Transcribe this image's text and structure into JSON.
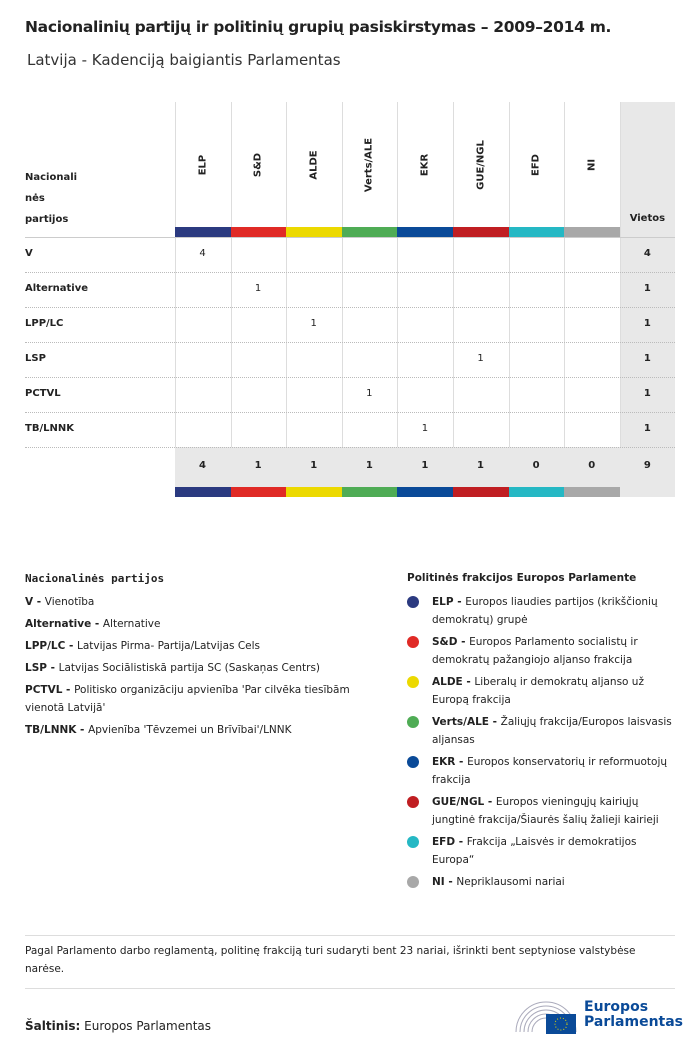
{
  "header": {
    "title": "Nacionalinių partijų ir politinių grupių pasiskirstymas – 2009–2014 m.",
    "subtitle": "Latvija - Kadenciją baigiantis Parlamentas"
  },
  "chart_data": {
    "type": "table",
    "row_header": "Nacionali nės partijos",
    "total_header": "Vietos",
    "columns": [
      {
        "name": "ELP",
        "color": "#2b3a80"
      },
      {
        "name": "S&D",
        "color": "#e02a26"
      },
      {
        "name": "ALDE",
        "color": "#ecd900"
      },
      {
        "name": "Verts/ALE",
        "color": "#4fac55"
      },
      {
        "name": "EKR",
        "color": "#0a4a98"
      },
      {
        "name": "GUE/NGL",
        "color": "#c01e22"
      },
      {
        "name": "EFD",
        "color": "#25b8c4"
      },
      {
        "name": "NI",
        "color": "#a8a8a8"
      }
    ],
    "rows": [
      {
        "party": "V",
        "values": [
          4,
          null,
          null,
          null,
          null,
          null,
          null,
          null
        ],
        "total": 4
      },
      {
        "party": "Alternative",
        "values": [
          null,
          1,
          null,
          null,
          null,
          null,
          null,
          null
        ],
        "total": 1
      },
      {
        "party": "LPP/LC",
        "values": [
          null,
          null,
          1,
          null,
          null,
          null,
          null,
          null
        ],
        "total": 1
      },
      {
        "party": "LSP",
        "values": [
          null,
          null,
          null,
          null,
          null,
          1,
          null,
          null
        ],
        "total": 1
      },
      {
        "party": "PCTVL",
        "values": [
          null,
          null,
          null,
          1,
          null,
          null,
          null,
          null
        ],
        "total": 1
      },
      {
        "party": "TB/LNNK",
        "values": [
          null,
          null,
          null,
          null,
          1,
          null,
          null,
          null
        ],
        "total": 1
      }
    ],
    "totals": [
      4,
      1,
      1,
      1,
      1,
      1,
      0,
      0
    ],
    "grand_total": 9
  },
  "legend_national": {
    "title": "Nacionalinės partijos",
    "items": [
      {
        "abbr": "V - ",
        "name": "Vienotība"
      },
      {
        "abbr": "Alternative - ",
        "name": "Alternative"
      },
      {
        "abbr": "LPP/LC - ",
        "name": "Latvijas Pirma- Partija/Latvijas Cels"
      },
      {
        "abbr": "LSP - ",
        "name": "Latvijas Sociālistiskā partija SC (Saskaņas Centrs)"
      },
      {
        "abbr": "PCTVL - ",
        "name": "Politisko organizāciju apvienība 'Par cilvēka tiesībām vienotā Latvijā'"
      },
      {
        "abbr": "TB/LNNK - ",
        "name": "Apvienība 'Tēvzemei un Brīvībai'/LNNK"
      }
    ]
  },
  "legend_groups": {
    "title": "Politinės frakcijos Europos Parlamente",
    "items": [
      {
        "abbr": "ELP - ",
        "name": "Europos liaudies partijos (krikščionių demokratų) grupė",
        "color": "#2b3a80"
      },
      {
        "abbr": "S&D - ",
        "name": "Europos Parlamento socialistų ir demokratų pažangiojo aljanso frakcija",
        "color": "#e02a26"
      },
      {
        "abbr": "ALDE - ",
        "name": "Liberalų ir demokratų aljanso už Europą frakcija",
        "color": "#ecd900"
      },
      {
        "abbr": "Verts/ALE - ",
        "name": "Žaliųjų frakcija/Europos laisvasis aljansas",
        "color": "#4fac55"
      },
      {
        "abbr": "EKR - ",
        "name": "Europos konservatorių ir reformuotojų frakcija",
        "color": "#0a4a98"
      },
      {
        "abbr": "GUE/NGL - ",
        "name": "Europos vieningųjų kairiųjų jungtinė frakcija/Šiaurės šalių žalieji kairieji",
        "color": "#c01e22"
      },
      {
        "abbr": "EFD - ",
        "name": "Frakcija „Laisvės ir demokratijos Europa“",
        "color": "#25b8c4"
      },
      {
        "abbr": "NI - ",
        "name": "Nepriklausomi nariai",
        "color": "#a8a8a8"
      }
    ]
  },
  "footer": {
    "note": "Pagal Parlamento darbo reglamentą, politinę frakciją turi sudaryti bent 23 nariai, išrinkti bent septyniose valstybėse narėse.",
    "source_label": "Šaltinis:",
    "source": "Europos Parlamentas",
    "logo_text": "Europos Parlamentas"
  }
}
